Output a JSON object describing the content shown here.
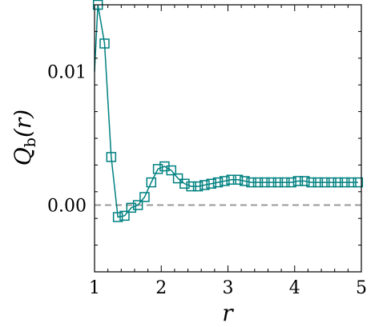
{
  "chart_data": {
    "type": "line",
    "xlabel": "r",
    "ylabel": "Q_b(r)",
    "ylabel_main": "Q",
    "ylabel_sub": "b",
    "ylabel_arg": "(r)",
    "xlim": [
      1,
      5
    ],
    "ylim": [
      -0.005,
      0.015
    ],
    "xticks": [
      1,
      2,
      3,
      4,
      5
    ],
    "xtick_labels": [
      "1",
      "2",
      "3",
      "4",
      "5"
    ],
    "yticks": [
      0.0,
      0.01
    ],
    "ytick_labels": [
      "0.00",
      "0.01"
    ],
    "x_minor_step": 0.2,
    "y_minor_step": 0.002,
    "grid": false,
    "reference_line": {
      "y": 0.0,
      "style": "dashed",
      "color": "#999999"
    },
    "series": [
      {
        "color": "#008080",
        "marker": "square-open",
        "x": [
          1.05,
          1.15,
          1.25,
          1.35,
          1.45,
          1.55,
          1.65,
          1.75,
          1.85,
          1.95,
          2.05,
          2.15,
          2.25,
          2.35,
          2.45,
          2.55,
          2.65,
          2.75,
          2.85,
          2.95,
          3.05,
          3.15,
          3.25,
          3.35,
          3.45,
          3.55,
          3.65,
          3.75,
          3.85,
          3.95,
          4.05,
          4.15,
          4.25,
          4.35,
          4.45,
          4.55,
          4.65,
          4.75,
          4.85,
          4.95
        ],
        "y": [
          0.015,
          0.0121,
          0.0036,
          -0.0009,
          -0.0008,
          -0.0002,
          0.0,
          0.0006,
          0.0017,
          0.0027,
          0.0029,
          0.0026,
          0.002,
          0.0016,
          0.0014,
          0.0014,
          0.0015,
          0.0016,
          0.0017,
          0.0018,
          0.0019,
          0.0019,
          0.0018,
          0.0017,
          0.0017,
          0.0017,
          0.0017,
          0.0017,
          0.0017,
          0.0017,
          0.0018,
          0.0018,
          0.0017,
          0.0017,
          0.0017,
          0.0017,
          0.0017,
          0.0017,
          0.0017,
          0.0017
        ]
      }
    ],
    "line_start": {
      "x": 1.0,
      "y": 0.01
    }
  }
}
